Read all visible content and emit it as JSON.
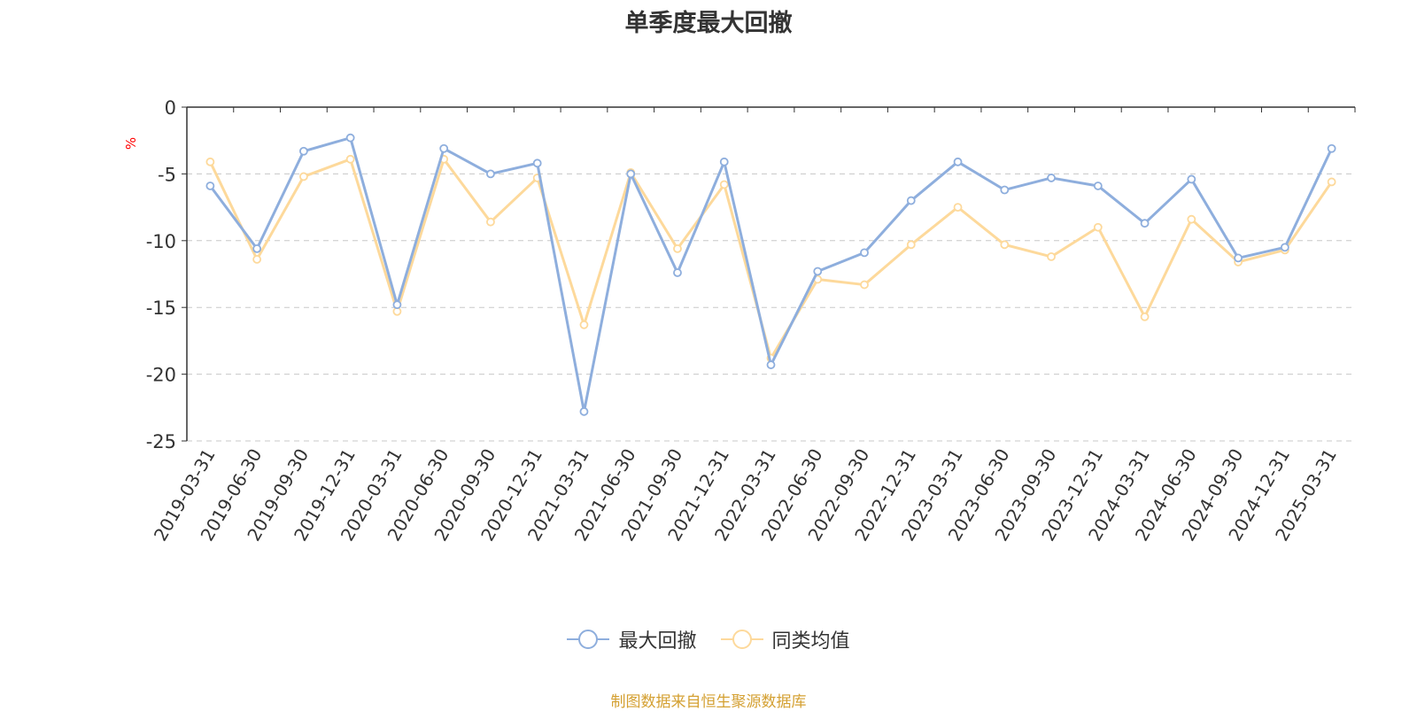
{
  "chart_data": {
    "type": "line",
    "title": "单季度最大回撤",
    "ylabel": "%",
    "ylim": [
      -25,
      0
    ],
    "yticks": [
      0,
      -5,
      -10,
      -15,
      -20,
      -25
    ],
    "grid": true,
    "legend_position": "bottom",
    "categories": [
      "2019-03-31",
      "2019-06-30",
      "2019-09-30",
      "2019-12-31",
      "2020-03-31",
      "2020-06-30",
      "2020-09-30",
      "2020-12-31",
      "2021-03-31",
      "2021-06-30",
      "2021-09-30",
      "2021-12-31",
      "2022-03-31",
      "2022-06-30",
      "2022-09-30",
      "2022-12-31",
      "2023-03-31",
      "2023-06-30",
      "2023-09-30",
      "2023-12-31",
      "2024-03-31",
      "2024-06-30",
      "2024-09-30",
      "2024-12-31",
      "2025-03-31"
    ],
    "series": [
      {
        "name": "最大回撤",
        "color": "#8eaedd",
        "values": [
          -5.9,
          -10.6,
          -3.3,
          -2.3,
          -14.8,
          -3.1,
          -5.0,
          -4.2,
          -22.8,
          -5.0,
          -12.4,
          -4.1,
          -19.3,
          -12.3,
          -10.9,
          -7.0,
          -4.1,
          -6.2,
          -5.3,
          -5.9,
          -8.7,
          -5.4,
          -11.3,
          -10.5,
          -3.1
        ]
      },
      {
        "name": "同类均值",
        "color": "#fdd99b",
        "values": [
          -4.1,
          -11.4,
          -5.2,
          -3.9,
          -15.3,
          -3.9,
          -8.6,
          -5.3,
          -16.3,
          -4.9,
          -10.6,
          -5.8,
          -18.8,
          -12.9,
          -13.3,
          -10.3,
          -7.5,
          -10.3,
          -11.2,
          -9.0,
          -15.7,
          -8.4,
          -11.6,
          -10.7,
          -5.6
        ]
      }
    ]
  },
  "source_text": "制图数据来自恒生聚源数据库"
}
